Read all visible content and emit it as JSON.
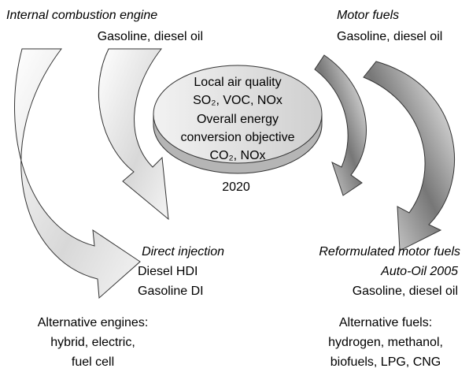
{
  "top_left": {
    "title": "Internal combustion engine",
    "subtitle": "Gasoline, diesel oil"
  },
  "top_right": {
    "title": "Motor fuels",
    "subtitle": "Gasoline, diesel oil"
  },
  "center": {
    "lines": [
      "Local air quality",
      "SO₂, VOC, NOx",
      "Overall energy",
      "conversion objective",
      "CO₂, NOx"
    ],
    "year": "2020"
  },
  "middle_left": {
    "title": "Direct injection",
    "lines": [
      "Diesel HDI",
      "Gasoline DI"
    ]
  },
  "middle_right": {
    "title": "Reformulated motor fuels",
    "subtitle": "Auto-Oil 2005",
    "lines": [
      "Gasoline, diesel oil"
    ]
  },
  "bottom_left": {
    "lines": [
      "Alternative engines:",
      "hybrid, electric,",
      "fuel cell"
    ]
  },
  "bottom_right": {
    "lines": [
      "Alternative fuels:",
      "hydrogen, methanol,",
      "biofuels, LPG, CNG"
    ]
  }
}
